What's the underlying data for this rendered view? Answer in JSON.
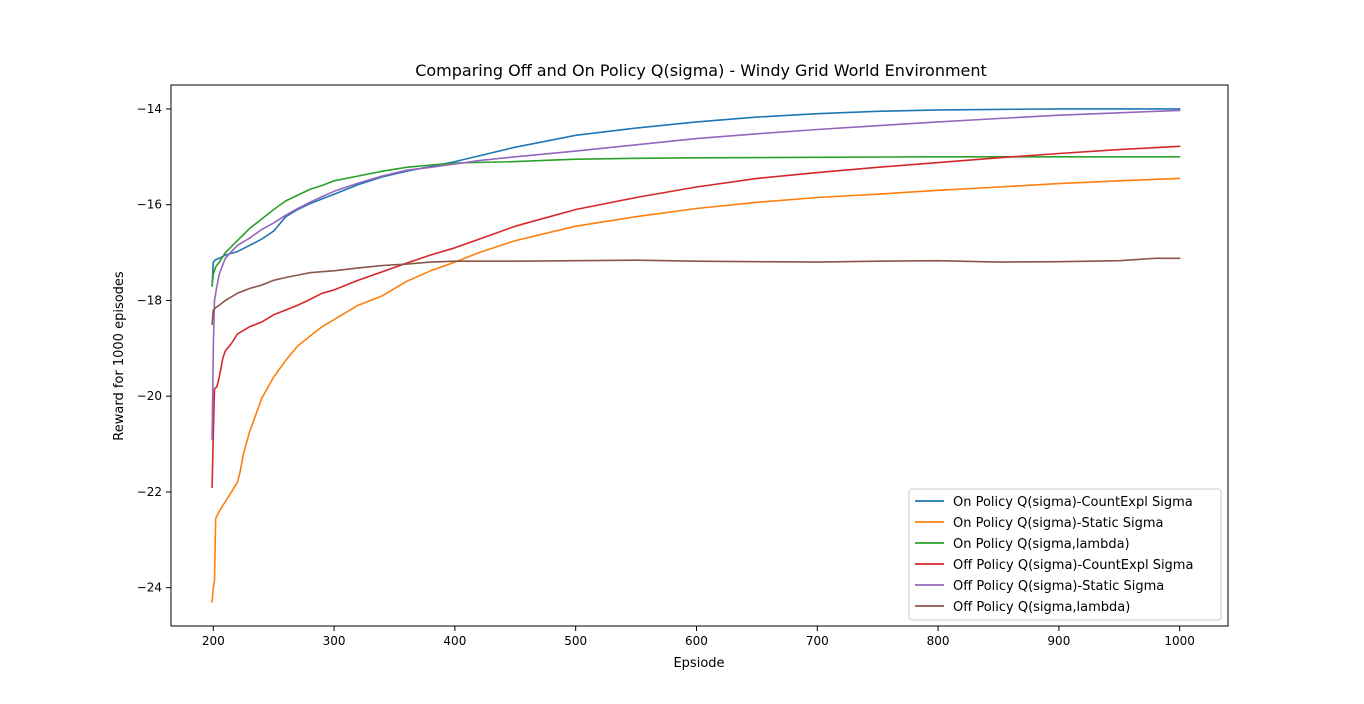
{
  "chart_data": {
    "type": "line",
    "title": "Comparing Off and On Policy Q(sigma) - Windy Grid World Environment",
    "xlabel": "Epsiode",
    "ylabel": "Reward for 1000 episodes",
    "xlim": [
      165,
      1040
    ],
    "ylim": [
      -24.8,
      -13.5
    ],
    "xticks": [
      200,
      300,
      400,
      500,
      600,
      700,
      800,
      900,
      1000
    ],
    "yticks": [
      -24,
      -22,
      -20,
      -18,
      -16,
      -14
    ],
    "grid": false,
    "legend_position": "lower-right",
    "series": [
      {
        "name": "On Policy Q(sigma)-CountExpl Sigma",
        "color": "#1f77b4",
        "x": [
          199,
          200,
          202,
          205,
          210,
          220,
          230,
          240,
          250,
          260,
          270,
          280,
          290,
          300,
          320,
          340,
          360,
          380,
          400,
          420,
          450,
          500,
          550,
          600,
          650,
          700,
          750,
          800,
          850,
          900,
          950,
          1000
        ],
        "y": [
          -17.7,
          -17.2,
          -17.15,
          -17.12,
          -17.05,
          -16.98,
          -16.85,
          -16.72,
          -16.55,
          -16.25,
          -16.1,
          -15.98,
          -15.88,
          -15.78,
          -15.58,
          -15.42,
          -15.3,
          -15.2,
          -15.1,
          -14.98,
          -14.8,
          -14.55,
          -14.4,
          -14.27,
          -14.17,
          -14.1,
          -14.05,
          -14.02,
          -14.01,
          -14.0,
          -14.0,
          -14.0
        ]
      },
      {
        "name": "On Policy Q(sigma)-Static Sigma",
        "color": "#ff7f0e",
        "x": [
          199,
          200,
          201,
          202,
          203,
          205,
          210,
          215,
          220,
          222,
          225,
          230,
          235,
          240,
          250,
          260,
          270,
          280,
          290,
          300,
          320,
          340,
          360,
          380,
          400,
          420,
          450,
          500,
          550,
          600,
          650,
          700,
          750,
          800,
          850,
          900,
          950,
          1000
        ],
        "y": [
          -24.3,
          -24.0,
          -23.85,
          -22.55,
          -22.5,
          -22.4,
          -22.2,
          -22.0,
          -21.8,
          -21.6,
          -21.2,
          -20.75,
          -20.4,
          -20.05,
          -19.6,
          -19.25,
          -18.95,
          -18.75,
          -18.55,
          -18.4,
          -18.1,
          -17.9,
          -17.6,
          -17.38,
          -17.2,
          -17.0,
          -16.75,
          -16.45,
          -16.25,
          -16.08,
          -15.95,
          -15.85,
          -15.78,
          -15.7,
          -15.63,
          -15.56,
          -15.5,
          -15.45
        ]
      },
      {
        "name": "On Policy Q(sigma,lambda)",
        "color": "#2ca02c",
        "x": [
          199,
          200,
          202,
          205,
          210,
          220,
          230,
          240,
          250,
          260,
          270,
          280,
          290,
          300,
          320,
          340,
          360,
          380,
          400,
          450,
          500,
          550,
          600,
          700,
          800,
          900,
          1000
        ],
        "y": [
          -17.7,
          -17.45,
          -17.3,
          -17.2,
          -17.0,
          -16.75,
          -16.5,
          -16.3,
          -16.1,
          -15.92,
          -15.8,
          -15.68,
          -15.6,
          -15.5,
          -15.4,
          -15.3,
          -15.22,
          -15.17,
          -15.13,
          -15.1,
          -15.05,
          -15.03,
          -15.02,
          -15.01,
          -15.0,
          -15.0,
          -15.0
        ]
      },
      {
        "name": "Off Policy Q(sigma)-CountExpl Sigma",
        "color": "#d62728",
        "x": [
          199,
          200,
          201,
          203,
          205,
          208,
          210,
          215,
          220,
          230,
          240,
          250,
          260,
          270,
          280,
          290,
          300,
          320,
          340,
          360,
          380,
          400,
          420,
          450,
          500,
          550,
          600,
          650,
          700,
          750,
          800,
          850,
          900,
          950,
          1000
        ],
        "y": [
          -21.9,
          -20.8,
          -19.85,
          -19.8,
          -19.6,
          -19.2,
          -19.05,
          -18.9,
          -18.7,
          -18.55,
          -18.45,
          -18.3,
          -18.2,
          -18.1,
          -17.98,
          -17.85,
          -17.78,
          -17.58,
          -17.4,
          -17.22,
          -17.05,
          -16.9,
          -16.72,
          -16.45,
          -16.1,
          -15.85,
          -15.63,
          -15.45,
          -15.33,
          -15.22,
          -15.12,
          -15.02,
          -14.93,
          -14.85,
          -14.78
        ]
      },
      {
        "name": "Off Policy Q(sigma)-Static Sigma",
        "color": "#9467bd",
        "x": [
          199,
          200,
          201,
          203,
          205,
          208,
          210,
          215,
          220,
          230,
          240,
          250,
          260,
          270,
          280,
          290,
          300,
          320,
          340,
          360,
          380,
          400,
          420,
          450,
          500,
          550,
          600,
          650,
          700,
          750,
          800,
          850,
          900,
          950,
          1000
        ],
        "y": [
          -20.9,
          -19.0,
          -18.0,
          -17.7,
          -17.45,
          -17.25,
          -17.12,
          -16.98,
          -16.85,
          -16.7,
          -16.52,
          -16.38,
          -16.22,
          -16.08,
          -15.95,
          -15.83,
          -15.72,
          -15.55,
          -15.4,
          -15.28,
          -15.22,
          -15.15,
          -15.08,
          -15.0,
          -14.88,
          -14.75,
          -14.62,
          -14.52,
          -14.43,
          -14.35,
          -14.27,
          -14.2,
          -14.13,
          -14.08,
          -14.03
        ]
      },
      {
        "name": "Off Policy Q(sigma,lambda)",
        "color": "#8c564b",
        "x": [
          199,
          200,
          202,
          205,
          210,
          220,
          230,
          240,
          250,
          260,
          270,
          280,
          290,
          300,
          320,
          340,
          360,
          380,
          400,
          450,
          500,
          550,
          600,
          650,
          700,
          750,
          800,
          850,
          900,
          950,
          980,
          1000
        ],
        "y": [
          -18.5,
          -18.2,
          -18.15,
          -18.1,
          -18.0,
          -17.85,
          -17.75,
          -17.68,
          -17.58,
          -17.52,
          -17.47,
          -17.42,
          -17.4,
          -17.38,
          -17.32,
          -17.27,
          -17.24,
          -17.2,
          -17.18,
          -17.18,
          -17.17,
          -17.16,
          -17.18,
          -17.19,
          -17.2,
          -17.18,
          -17.17,
          -17.2,
          -17.19,
          -17.17,
          -17.12,
          -17.12
        ]
      }
    ]
  }
}
